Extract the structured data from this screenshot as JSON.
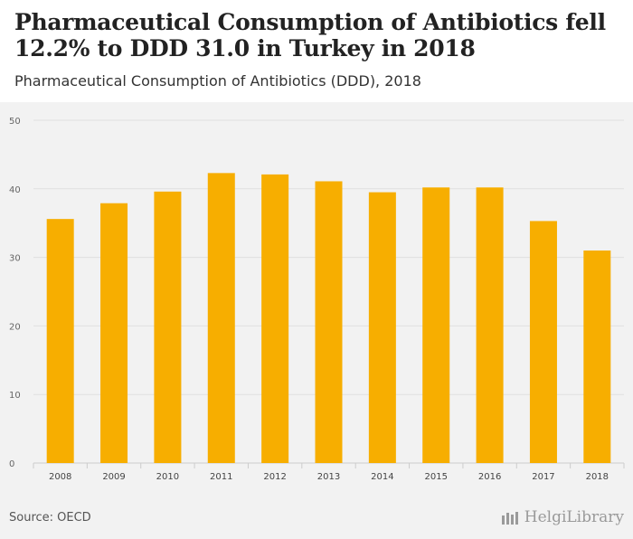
{
  "header": {
    "title": "Pharmaceutical Consumption of Antibiotics fell 12.2% to DDD 31.0 in Turkey in 2018",
    "subtitle": "Pharmaceutical Consumption of Antibiotics (DDD), 2018"
  },
  "footer": {
    "source": "Source: OECD",
    "brand": "HelgiLibrary"
  },
  "colors": {
    "bar": "#f7ae00",
    "background": "#f2f2f2",
    "grid": "#e0e0e0"
  },
  "chart_data": {
    "type": "bar",
    "title": "Pharmaceutical Consumption of Antibiotics fell 12.2% to DDD 31.0 in Turkey in 2018",
    "subtitle": "Pharmaceutical Consumption of Antibiotics (DDD), 2018",
    "categories": [
      "2008",
      "2009",
      "2010",
      "2011",
      "2012",
      "2013",
      "2014",
      "2015",
      "2016",
      "2017",
      "2018"
    ],
    "values": [
      35.6,
      37.9,
      39.6,
      42.3,
      42.1,
      41.1,
      39.5,
      40.2,
      40.2,
      35.3,
      31.0
    ],
    "xlabel": "",
    "ylabel": "",
    "ylim": [
      0,
      50
    ],
    "yticks": [
      0,
      10,
      20,
      30,
      40,
      50
    ],
    "grid": true,
    "legend": "none"
  }
}
